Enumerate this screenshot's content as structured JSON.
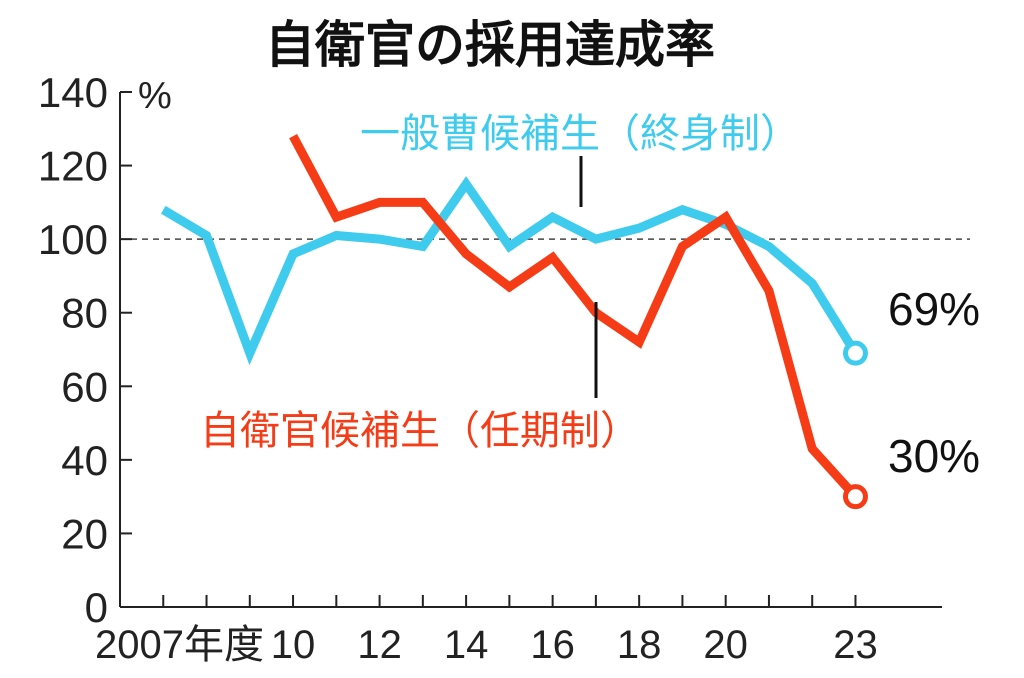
{
  "chart_data": {
    "type": "line",
    "title": "自衛官の採用達成率",
    "ylabel": "%",
    "ylim": [
      0,
      140
    ],
    "yticks": [
      0,
      20,
      40,
      60,
      80,
      100,
      120,
      140
    ],
    "x_range": [
      2006,
      2025
    ],
    "x_tick_labels": [
      {
        "x": 2007,
        "label": "2007年度"
      },
      {
        "x": 2010,
        "label": "10"
      },
      {
        "x": 2012,
        "label": "12"
      },
      {
        "x": 2014,
        "label": "14"
      },
      {
        "x": 2016,
        "label": "16"
      },
      {
        "x": 2018,
        "label": "18"
      },
      {
        "x": 2020,
        "label": "20"
      },
      {
        "x": 2023,
        "label": "23"
      }
    ],
    "reference_line": 100,
    "series": [
      {
        "name": "一般曹候補生（終身制）",
        "color": "#3ecbee",
        "x": [
          2007,
          2008,
          2009,
          2010,
          2011,
          2012,
          2013,
          2014,
          2015,
          2016,
          2017,
          2018,
          2019,
          2020,
          2021,
          2022,
          2023
        ],
        "values": [
          108,
          101,
          69,
          96,
          101,
          100,
          98,
          115,
          98,
          106,
          100,
          103,
          108,
          104,
          98,
          88,
          69
        ],
        "end_label": "69%"
      },
      {
        "name": "自衛官候補生（任期制）",
        "color": "#f63c17",
        "x": [
          2010,
          2011,
          2012,
          2013,
          2014,
          2015,
          2016,
          2017,
          2018,
          2019,
          2020,
          2021,
          2022,
          2023
        ],
        "values": [
          128,
          106,
          110,
          110,
          96,
          87,
          95,
          80,
          72,
          98,
          106,
          86,
          43,
          30
        ],
        "end_label": "30%"
      }
    ],
    "grid": false,
    "legend": "inline labels"
  }
}
